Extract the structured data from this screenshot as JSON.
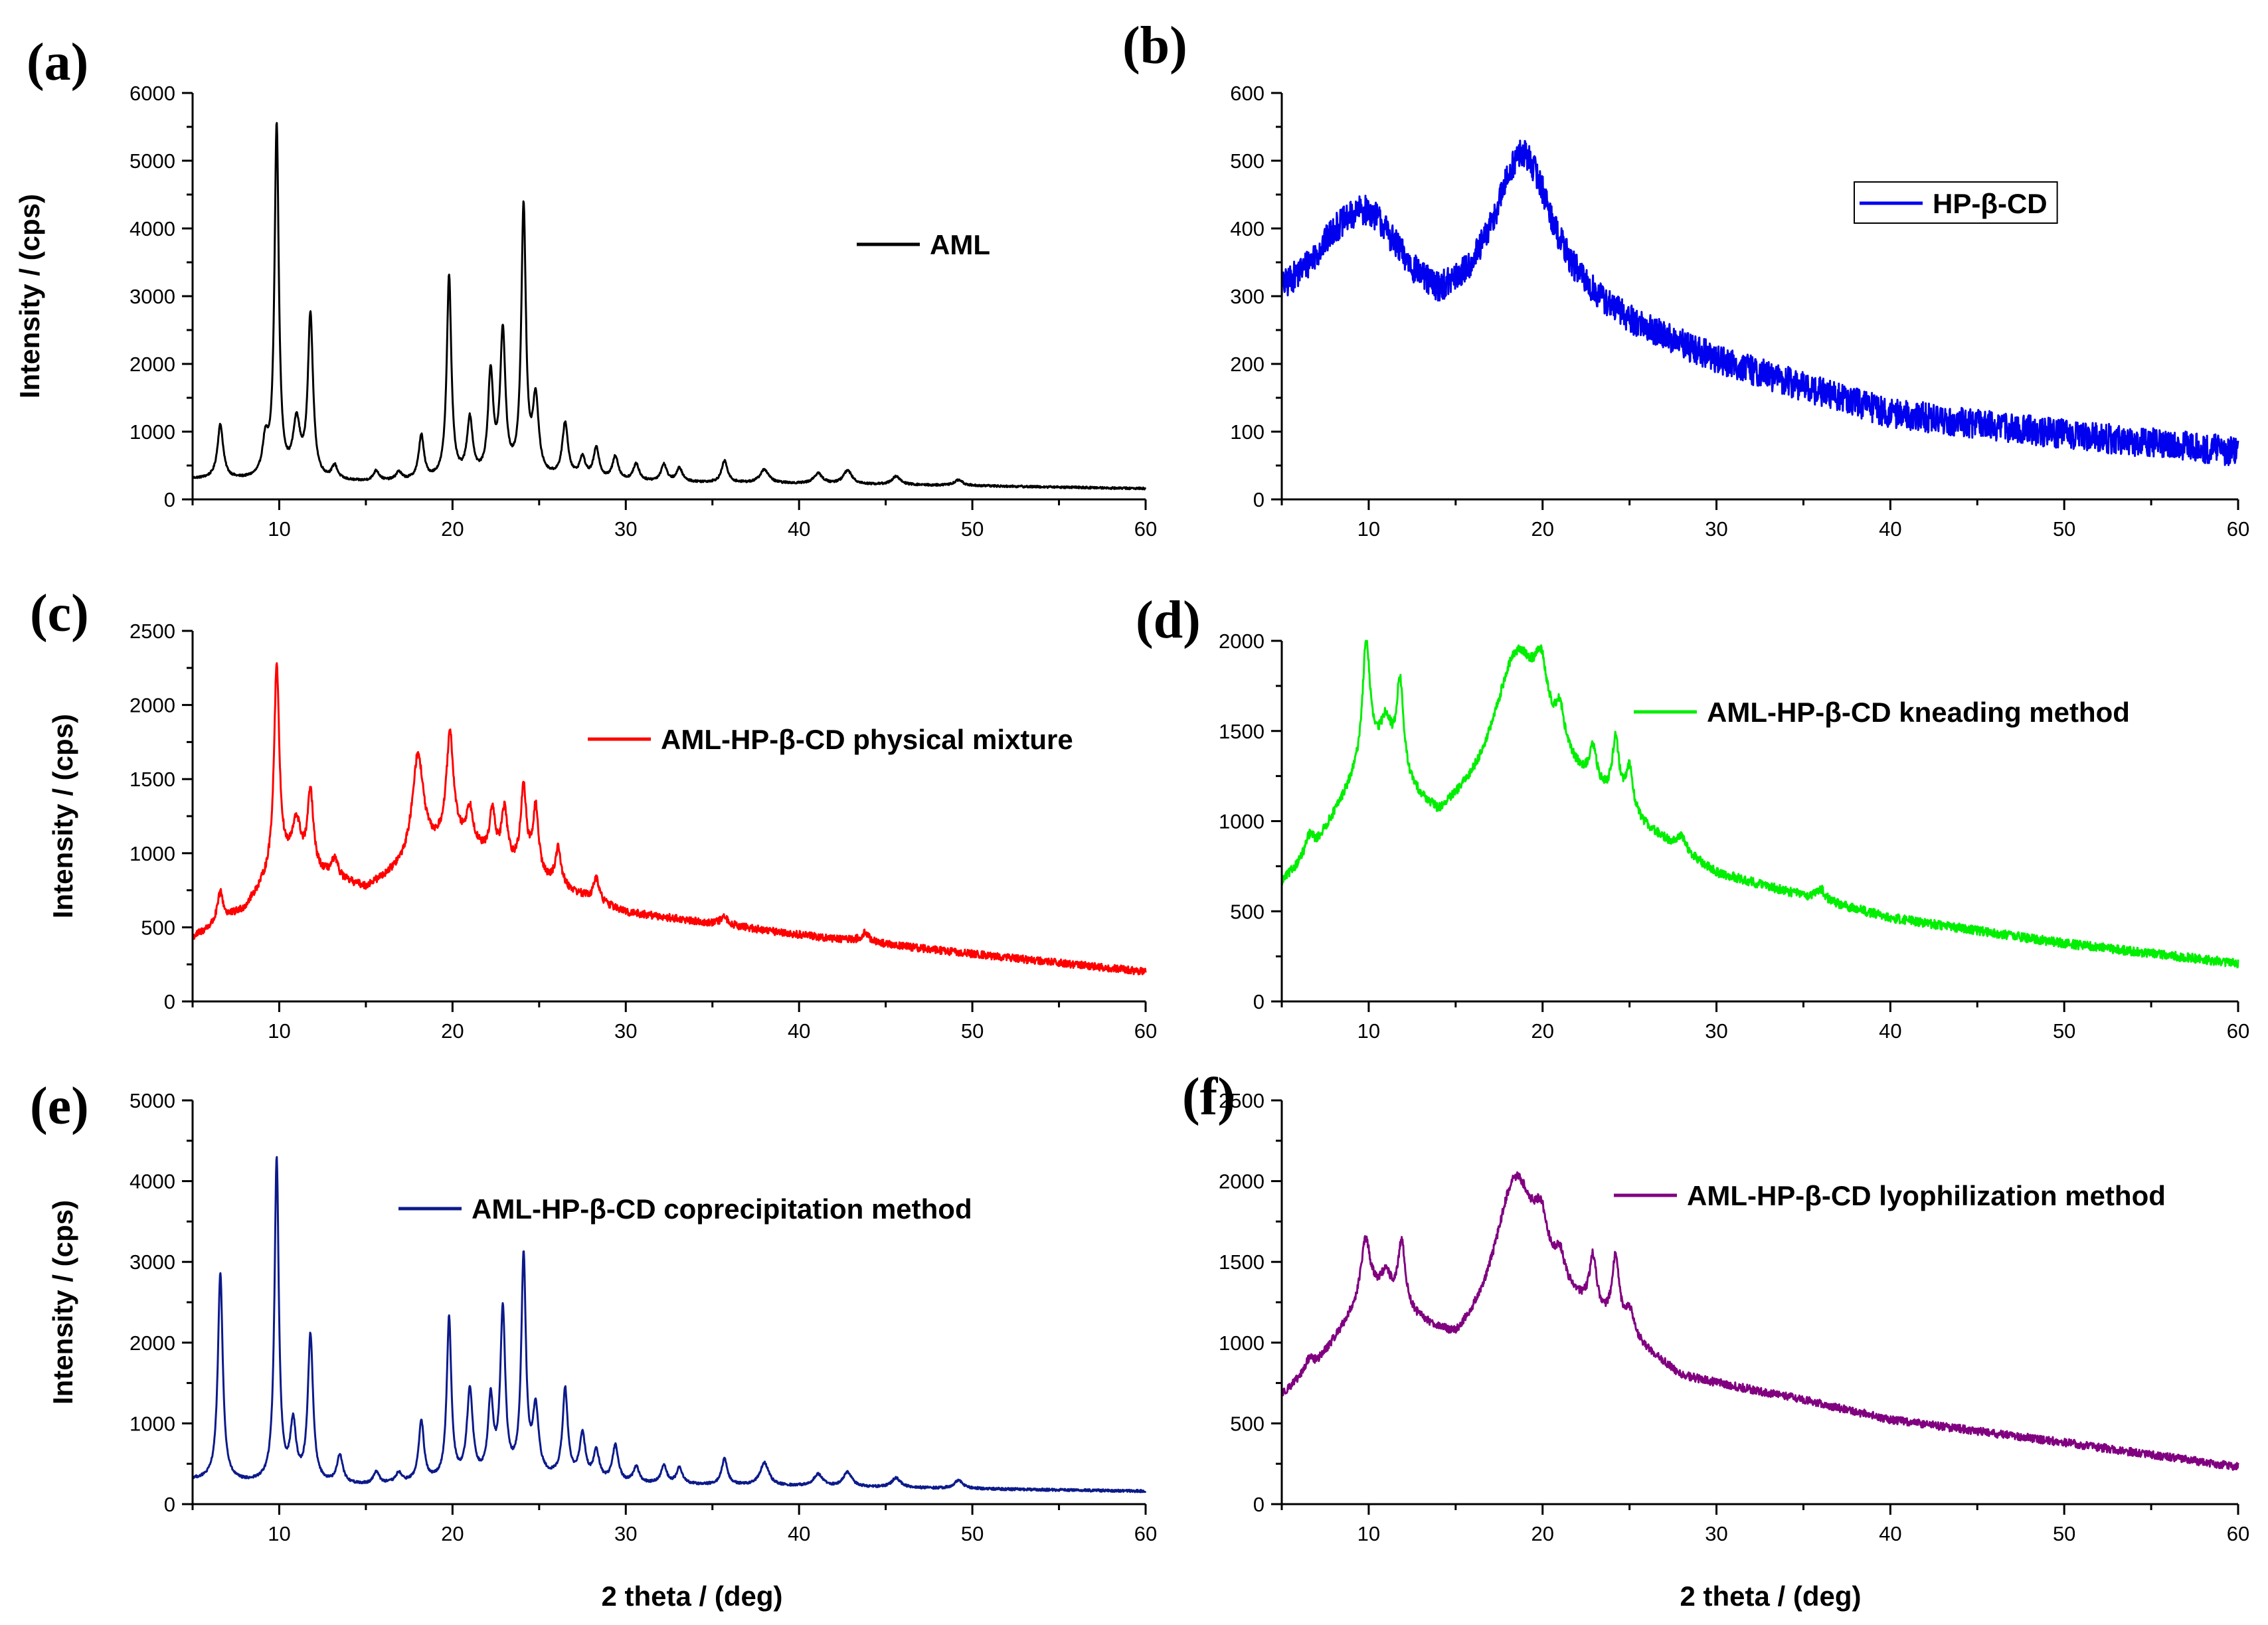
{
  "figure": {
    "x_title": "2 theta / (deg)",
    "y_title": "Intensity / (cps)"
  },
  "chart_data": [
    {
      "id": "a",
      "type": "line",
      "panel_label": "(a)",
      "legend": "AML",
      "color": "#000000",
      "xlabel": "",
      "ylabel": "Intensity / (cps)",
      "xlim": [
        5,
        60
      ],
      "ylim": [
        0,
        6000
      ],
      "xticks": [
        10,
        20,
        30,
        40,
        50,
        60
      ],
      "yticks": [
        0,
        1000,
        2000,
        3000,
        4000,
        5000,
        6000
      ],
      "baseline": [
        [
          5,
          300
        ],
        [
          8,
          280
        ],
        [
          15,
          250
        ],
        [
          25,
          300
        ],
        [
          30,
          260
        ],
        [
          40,
          230
        ],
        [
          50,
          200
        ],
        [
          60,
          160
        ]
      ],
      "noise": 15,
      "peaks": [
        [
          6.6,
          800,
          0.2
        ],
        [
          9.2,
          500,
          0.2
        ],
        [
          9.85,
          5200,
          0.15
        ],
        [
          11.0,
          800,
          0.25
        ],
        [
          11.8,
          2400,
          0.18
        ],
        [
          13.2,
          200,
          0.2
        ],
        [
          15.6,
          150,
          0.2
        ],
        [
          16.9,
          120,
          0.2
        ],
        [
          18.2,
          650,
          0.18
        ],
        [
          19.8,
          3000,
          0.16
        ],
        [
          21.0,
          850,
          0.2
        ],
        [
          22.2,
          1500,
          0.18
        ],
        [
          22.9,
          2100,
          0.18
        ],
        [
          24.1,
          3950,
          0.16
        ],
        [
          24.8,
          1100,
          0.2
        ],
        [
          26.5,
          800,
          0.2
        ],
        [
          27.5,
          300,
          0.2
        ],
        [
          28.3,
          450,
          0.2
        ],
        [
          29.4,
          350,
          0.2
        ],
        [
          30.6,
          250,
          0.2
        ],
        [
          32.2,
          250,
          0.2
        ],
        [
          33.1,
          200,
          0.2
        ],
        [
          35.7,
          320,
          0.2
        ],
        [
          38.0,
          200,
          0.3
        ],
        [
          41.1,
          150,
          0.3
        ],
        [
          42.8,
          200,
          0.3
        ],
        [
          45.6,
          120,
          0.3
        ],
        [
          49.2,
          80,
          0.3
        ]
      ]
    },
    {
      "id": "b",
      "type": "line",
      "panel_label": "(b)",
      "legend": "HP-β-CD",
      "color": "#0000ee",
      "xlabel": "",
      "ylabel": "",
      "xlim": [
        5,
        60
      ],
      "ylim": [
        0,
        600
      ],
      "xticks": [
        10,
        20,
        30,
        40,
        50,
        60
      ],
      "yticks": [
        0,
        100,
        200,
        300,
        400,
        500,
        600
      ],
      "baseline": [
        [
          5,
          290
        ],
        [
          8,
          330
        ],
        [
          14,
          255
        ],
        [
          20,
          290
        ],
        [
          25,
          245
        ],
        [
          30,
          200
        ],
        [
          40,
          125
        ],
        [
          50,
          95
        ],
        [
          60,
          70
        ]
      ],
      "noise": 22,
      "peaks": [
        [
          10.0,
          110,
          2.3
        ],
        [
          18.8,
          220,
          2.0
        ]
      ]
    },
    {
      "id": "c",
      "type": "line",
      "panel_label": "(c)",
      "legend": "AML-HP-β-CD physical mixture",
      "color": "#ff0000",
      "xlabel": "",
      "ylabel": "Intensity / (cps)",
      "xlim": [
        5,
        60
      ],
      "ylim": [
        0,
        2500
      ],
      "xticks": [
        10,
        20,
        30,
        40,
        50,
        60
      ],
      "yticks": [
        0,
        500,
        1000,
        1500,
        2000,
        2500
      ],
      "baseline": [
        [
          5,
          430
        ],
        [
          8,
          620
        ],
        [
          10,
          930
        ],
        [
          15,
          760
        ],
        [
          20,
          1080
        ],
        [
          25,
          820
        ],
        [
          30,
          600
        ],
        [
          40,
          450
        ],
        [
          50,
          320
        ],
        [
          60,
          200
        ]
      ],
      "noise": 25,
      "peaks": [
        [
          6.6,
          200,
          0.2
        ],
        [
          9.85,
          1350,
          0.18
        ],
        [
          11.0,
          300,
          0.3
        ],
        [
          11.8,
          520,
          0.2
        ],
        [
          13.2,
          120,
          0.25
        ],
        [
          18.0,
          700,
          0.4
        ],
        [
          19.85,
          700,
          0.25
        ],
        [
          21.0,
          250,
          0.25
        ],
        [
          22.3,
          300,
          0.2
        ],
        [
          23.0,
          350,
          0.2
        ],
        [
          24.1,
          550,
          0.2
        ],
        [
          24.8,
          450,
          0.2
        ],
        [
          26.1,
          250,
          0.2
        ],
        [
          28.3,
          150,
          0.2
        ],
        [
          35.7,
          50,
          0.3
        ],
        [
          43.8,
          60,
          0.3
        ]
      ]
    },
    {
      "id": "d",
      "type": "line",
      "panel_label": "(d)",
      "legend": "AML-HP-β-CD kneading method",
      "color": "#00ee00",
      "xlabel": "",
      "ylabel": "",
      "xlim": [
        5,
        60
      ],
      "ylim": [
        0,
        2000
      ],
      "xticks": [
        10,
        20,
        30,
        40,
        50,
        60
      ],
      "yticks": [
        0,
        500,
        1000,
        1500,
        2000
      ],
      "baseline": [
        [
          5,
          650
        ],
        [
          7,
          850
        ],
        [
          10,
          1350
        ],
        [
          14,
          980
        ],
        [
          20,
          1300
        ],
        [
          25,
          990
        ],
        [
          30,
          700
        ],
        [
          40,
          460
        ],
        [
          50,
          320
        ],
        [
          60,
          210
        ]
      ],
      "noise": 25,
      "peaks": [
        [
          6.6,
          100,
          0.3
        ],
        [
          9.85,
          620,
          0.25
        ],
        [
          11.0,
          250,
          0.4
        ],
        [
          11.8,
          520,
          0.25
        ],
        [
          18.5,
          700,
          1.6
        ],
        [
          19.9,
          250,
          0.4
        ],
        [
          21.0,
          200,
          0.3
        ],
        [
          22.9,
          200,
          0.25
        ],
        [
          24.2,
          350,
          0.25
        ],
        [
          25.0,
          250,
          0.25
        ],
        [
          28.0,
          80,
          0.3
        ],
        [
          36.0,
          60,
          0.3
        ]
      ]
    },
    {
      "id": "e",
      "type": "line",
      "panel_label": "(e)",
      "legend": "AML-HP-β-CD coprecipitation method",
      "color": "#0c1a8a",
      "xlabel": "2 theta / (deg)",
      "ylabel": "Intensity / (cps)",
      "xlim": [
        5,
        60
      ],
      "ylim": [
        0,
        5000
      ],
      "xticks": [
        10,
        20,
        30,
        40,
        50,
        60
      ],
      "yticks": [
        0,
        1000,
        2000,
        3000,
        4000,
        5000
      ],
      "baseline": [
        [
          5,
          300
        ],
        [
          8,
          260
        ],
        [
          15,
          230
        ],
        [
          25,
          320
        ],
        [
          30,
          250
        ],
        [
          40,
          220
        ],
        [
          50,
          190
        ],
        [
          60,
          160
        ]
      ],
      "noise": 15,
      "peaks": [
        [
          6.6,
          2580,
          0.17
        ],
        [
          9.85,
          4000,
          0.15
        ],
        [
          10.8,
          700,
          0.2
        ],
        [
          11.8,
          1820,
          0.18
        ],
        [
          13.5,
          350,
          0.2
        ],
        [
          15.6,
          150,
          0.2
        ],
        [
          16.9,
          120,
          0.2
        ],
        [
          18.2,
          750,
          0.18
        ],
        [
          19.8,
          2000,
          0.16
        ],
        [
          21.0,
          1100,
          0.2
        ],
        [
          22.2,
          950,
          0.18
        ],
        [
          22.9,
          2050,
          0.17
        ],
        [
          24.1,
          2700,
          0.16
        ],
        [
          24.8,
          800,
          0.2
        ],
        [
          26.5,
          1100,
          0.18
        ],
        [
          27.5,
          550,
          0.2
        ],
        [
          28.3,
          350,
          0.2
        ],
        [
          29.4,
          450,
          0.2
        ],
        [
          30.6,
          200,
          0.2
        ],
        [
          32.2,
          220,
          0.2
        ],
        [
          33.1,
          200,
          0.2
        ],
        [
          35.7,
          320,
          0.2
        ],
        [
          38.0,
          280,
          0.3
        ],
        [
          41.1,
          150,
          0.3
        ],
        [
          42.8,
          180,
          0.3
        ],
        [
          45.6,
          120,
          0.3
        ],
        [
          49.2,
          100,
          0.3
        ]
      ]
    },
    {
      "id": "f",
      "type": "line",
      "panel_label": "(f)",
      "legend": "AML-HP-β-CD lyophilization method",
      "color": "#800080",
      "xlabel": "2 theta / (deg)",
      "ylabel": "",
      "xlim": [
        5,
        60
      ],
      "ylim": [
        0,
        2500
      ],
      "xticks": [
        10,
        20,
        30,
        40,
        50,
        60
      ],
      "yticks": [
        0,
        500,
        1000,
        1500,
        2000,
        2500
      ],
      "baseline": [
        [
          5,
          670
        ],
        [
          7,
          850
        ],
        [
          10,
          1300
        ],
        [
          15,
          950
        ],
        [
          20,
          1300
        ],
        [
          25,
          1000
        ],
        [
          28,
          780
        ],
        [
          35,
          640
        ],
        [
          40,
          520
        ],
        [
          50,
          380
        ],
        [
          60,
          230
        ]
      ],
      "noise": 25,
      "peaks": [
        [
          6.6,
          80,
          0.3
        ],
        [
          9.8,
          330,
          0.3
        ],
        [
          11.0,
          150,
          0.4
        ],
        [
          11.9,
          400,
          0.25
        ],
        [
          18.4,
          820,
          1.4
        ],
        [
          19.9,
          200,
          0.4
        ],
        [
          21.0,
          150,
          0.3
        ],
        [
          22.9,
          330,
          0.25
        ],
        [
          24.2,
          420,
          0.25
        ],
        [
          25.0,
          150,
          0.3
        ]
      ]
    }
  ]
}
